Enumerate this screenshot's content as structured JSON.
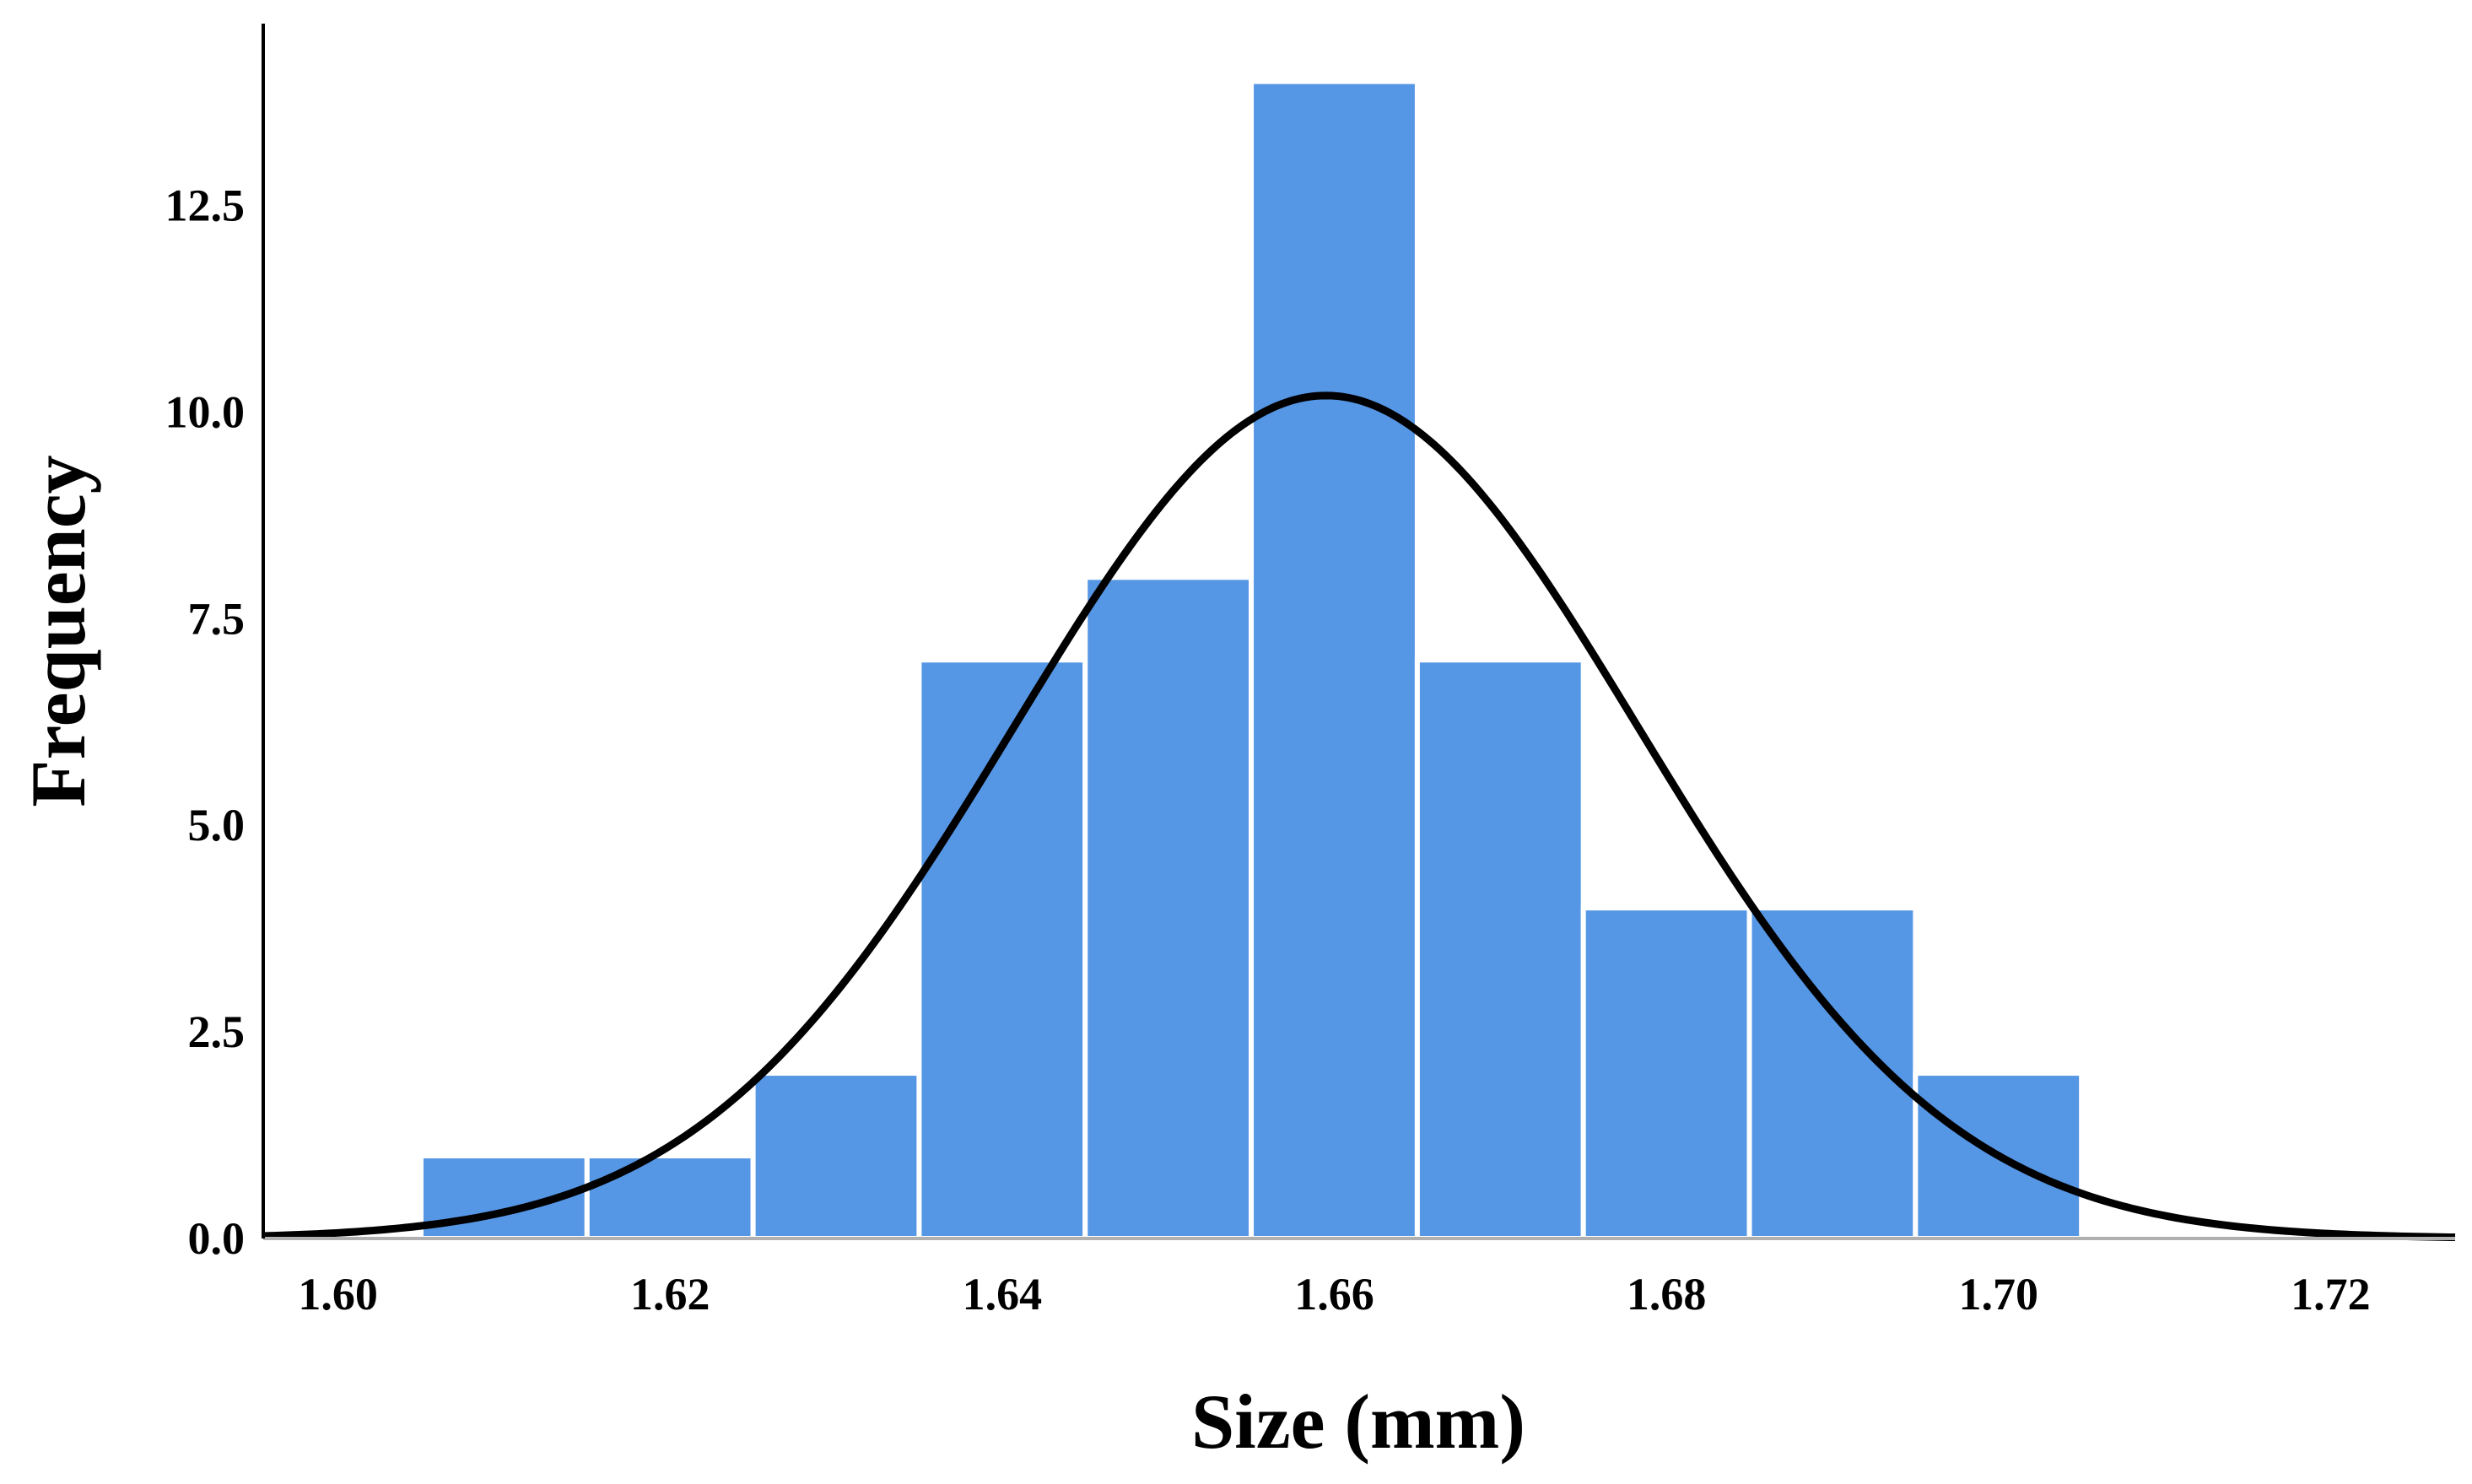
{
  "chart_data": {
    "type": "bar",
    "subtype": "histogram",
    "title": "",
    "xlabel": "Size (mm)",
    "ylabel": "Frequency",
    "xlim": [
      1.5955,
      1.7275
    ],
    "ylim": [
      0,
      14.7
    ],
    "x_ticks": [
      "1.60",
      "1.62",
      "1.64",
      "1.66",
      "1.68",
      "1.70",
      "1.72"
    ],
    "y_ticks": [
      "0.0",
      "2.5",
      "5.0",
      "7.5",
      "10.0",
      "12.5"
    ],
    "bin_width": 0.01,
    "bins": [
      {
        "start": 1.605,
        "end": 1.615,
        "count": 1
      },
      {
        "start": 1.615,
        "end": 1.625,
        "count": 1
      },
      {
        "start": 1.625,
        "end": 1.635,
        "count": 2
      },
      {
        "start": 1.635,
        "end": 1.645,
        "count": 7
      },
      {
        "start": 1.645,
        "end": 1.655,
        "count": 8
      },
      {
        "start": 1.655,
        "end": 1.665,
        "count": 14
      },
      {
        "start": 1.665,
        "end": 1.675,
        "count": 7
      },
      {
        "start": 1.675,
        "end": 1.685,
        "count": 4
      },
      {
        "start": 1.685,
        "end": 1.695,
        "count": 4
      },
      {
        "start": 1.695,
        "end": 1.705,
        "count": 2
      }
    ],
    "normal_curve": {
      "mean": 1.6595,
      "sd": 0.0188,
      "peak": 10.2
    },
    "bar_color": "#5596e5",
    "curve_color": "#000000",
    "grid": false
  }
}
